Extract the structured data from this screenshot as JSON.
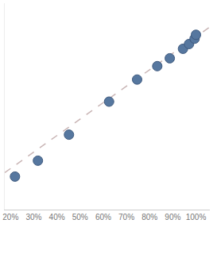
{
  "chart_data": {
    "type": "scatter",
    "series": [
      {
        "type": "scatter",
        "marker": "circle",
        "color": "#56779f",
        "x": [
          21.9,
          31.8,
          45.2,
          62.5,
          74.6,
          83.3,
          88.7,
          94.4,
          97.0,
          99.4,
          100
        ],
        "values": [
          16.0,
          23.7,
          36.3,
          52.3,
          63.0,
          69.5,
          73.3,
          77.9,
          80.2,
          82.8,
          84.7
        ]
      },
      {
        "type": "line",
        "line_style": "dash",
        "color": "#c9b5b5",
        "x": [
          17.5,
          106
        ],
        "values": [
          17.9,
          88.5
        ]
      }
    ],
    "xlim": [
      17.5,
      106
    ],
    "xticks": [
      {
        "value": 20,
        "label": "20%"
      },
      {
        "value": 30,
        "label": "30%"
      },
      {
        "value": 40,
        "label": "40%"
      },
      {
        "value": 50,
        "label": "50%"
      },
      {
        "value": 60,
        "label": "60%"
      },
      {
        "value": 70,
        "label": "70%"
      },
      {
        "value": 80,
        "label": "80%"
      },
      {
        "value": 90,
        "label": "90%"
      },
      {
        "value": 100,
        "label": "100%"
      }
    ],
    "ylim": [
      0,
      100
    ],
    "yticks": [],
    "grid": false,
    "tick_labels": "x"
  }
}
